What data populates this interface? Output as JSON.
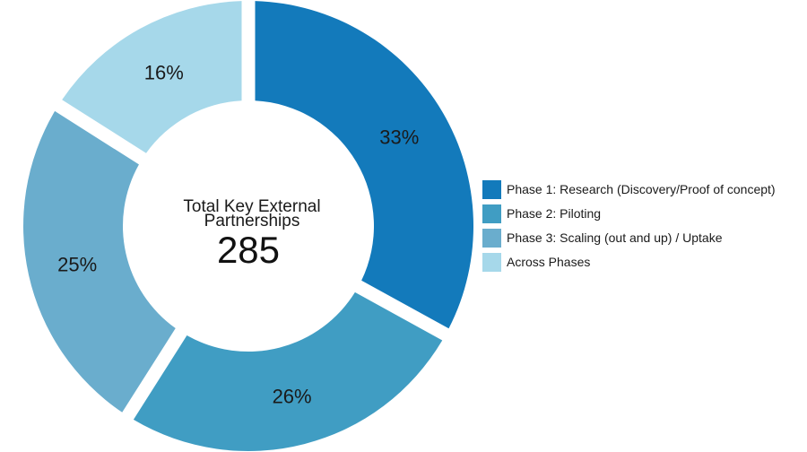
{
  "chart_data": {
    "type": "pie",
    "style": "donut",
    "center_title_lines": [
      "Total Key External",
      "Partnerships"
    ],
    "center_total": "285",
    "legend_position": "right",
    "slices": [
      {
        "name": "Phase 1: Research (Discovery/Proof of concept)",
        "value": 33,
        "label": "33%",
        "color": "#137abb"
      },
      {
        "name": "Phase 2: Piloting",
        "value": 26,
        "label": "26%",
        "color": "#409dc3"
      },
      {
        "name": "Phase 3: Scaling (out and up) / Uptake",
        "value": 25,
        "label": "25%",
        "color": "#6aadcd"
      },
      {
        "name": "Across Phases",
        "value": 16,
        "label": "16%",
        "color": "#a6d8ea"
      }
    ]
  }
}
